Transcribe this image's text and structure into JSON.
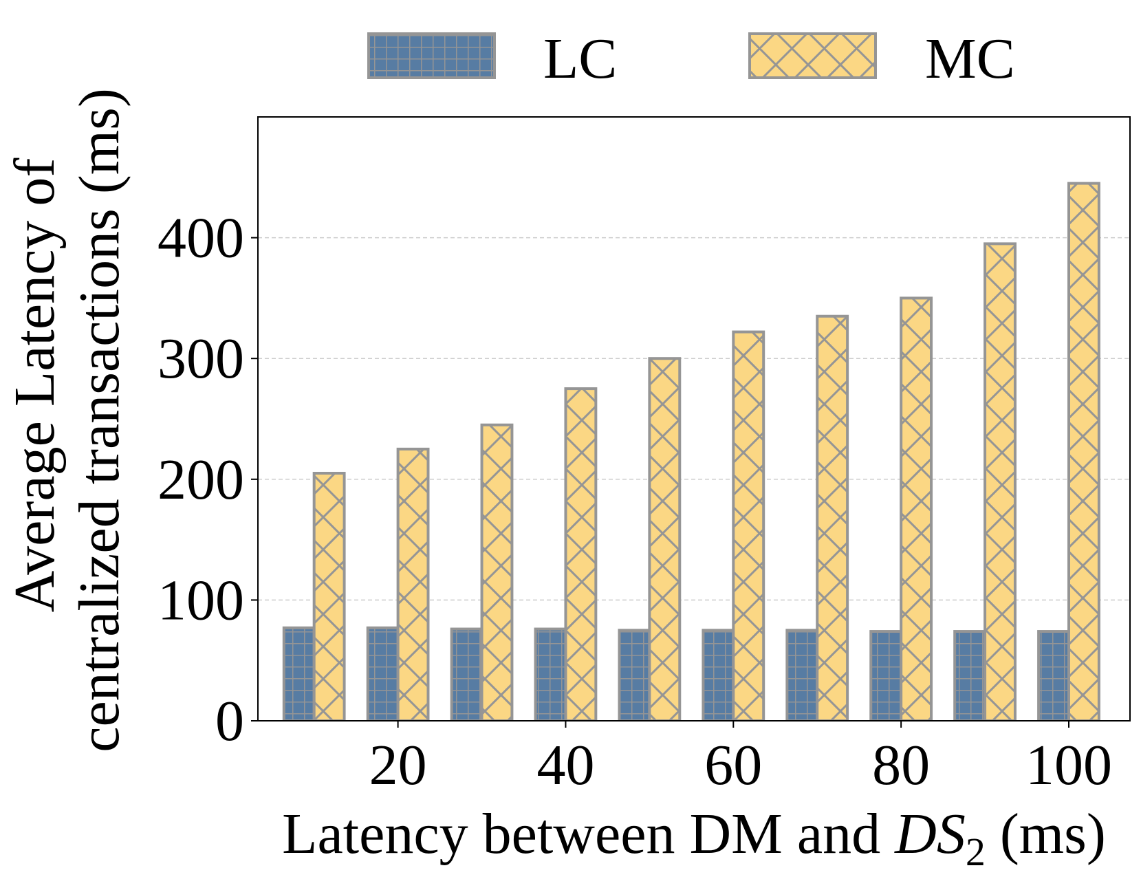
{
  "chart_data": {
    "type": "bar",
    "categories": [
      10,
      20,
      30,
      40,
      50,
      60,
      70,
      80,
      90,
      100
    ],
    "series": [
      {
        "name": "LC",
        "values": [
          77,
          77,
          76,
          76,
          75,
          75,
          75,
          74,
          74,
          74
        ],
        "color": "#577ca3",
        "pattern": "grid"
      },
      {
        "name": "MC",
        "values": [
          205,
          225,
          245,
          275,
          300,
          322,
          335,
          350,
          395,
          445
        ],
        "color": "#fbd784",
        "pattern": "crosshatch"
      }
    ],
    "edge_color": "#959595",
    "xlabel_prefix": "Latency between DM and ",
    "xlabel_math": "DS",
    "xlabel_subscript": "2",
    "xlabel_suffix": " (ms)",
    "ylabel_line1": "Average Latency of",
    "ylabel_line2": "centralized transactions (ms)",
    "x_ticks": [
      "20",
      "40",
      "60",
      "80",
      "100"
    ],
    "x_tick_values": [
      20,
      40,
      60,
      80,
      100
    ],
    "y_ticks": [
      "0",
      "100",
      "200",
      "300",
      "400"
    ],
    "y_tick_values": [
      0,
      100,
      200,
      300,
      400
    ],
    "xlim": [
      3.3,
      107.3
    ],
    "ylim": [
      0,
      500
    ],
    "grid": "horizontal dashed",
    "legend_position": "top"
  }
}
